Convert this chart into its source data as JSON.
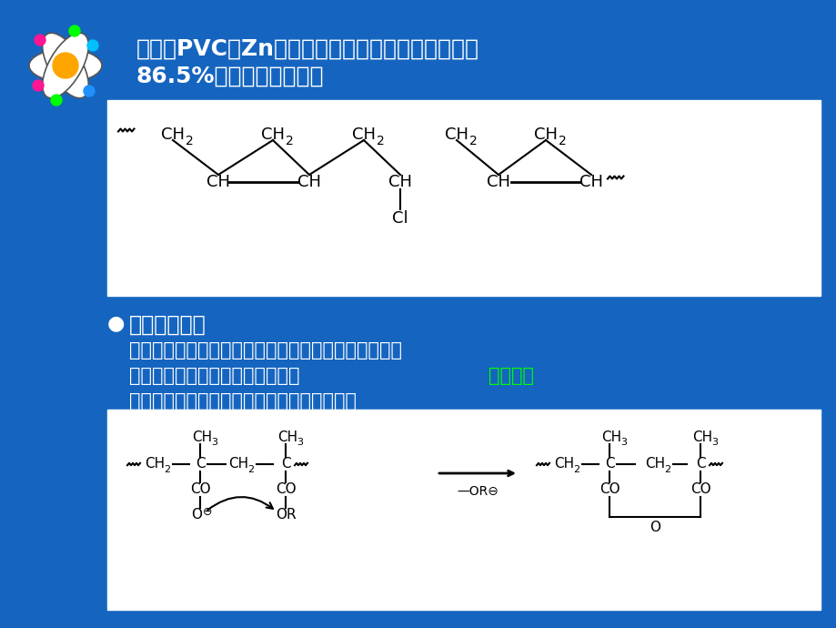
{
  "bg_color": "#1565C0",
  "white_box_color": "#FFFFFF",
  "text_color": "#FFFFFF",
  "black_text": "#000000",
  "green_text": "#00FF00",
  "title_line1": "例如，PVC与Zn粉共热脱氯，按几率计算只能达到",
  "title_line2": "86.5%，与实验结果相符",
  "bullet_title": "邻近基团效应",
  "bullet_text1": "高分子链上的邻近基团，包括反应后的基团都可以改变",
  "bullet_text2": "未反应基团的活性，这种影响称为",
  "bullet_text2_green": "邻基效应",
  "bullet_text3": "如聚甲基丙烯酸酯类碱性水解有自动催化作用",
  "font_size_title": 18,
  "font_size_bullet": 17,
  "font_size_text": 15
}
